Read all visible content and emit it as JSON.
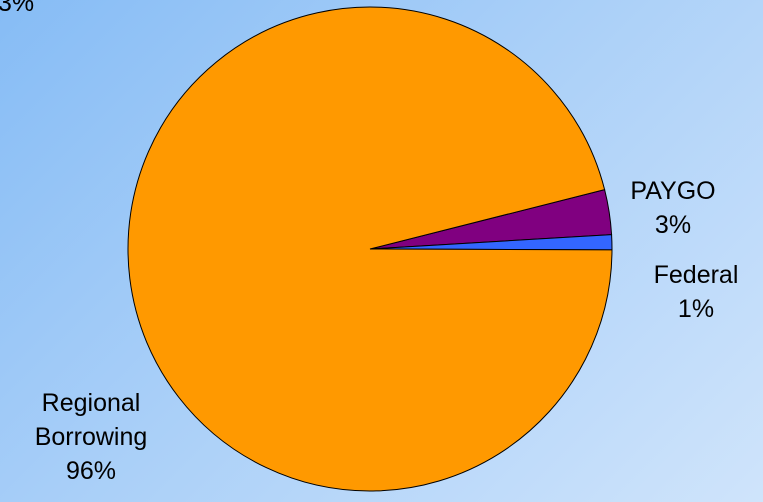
{
  "chart_data": {
    "type": "pie",
    "title": "",
    "slices": [
      {
        "label": "PAYGO",
        "value": 3,
        "value_label": "3%",
        "color": "#800080"
      },
      {
        "label": "Federal",
        "value": 1,
        "value_label": "1%",
        "color": "#3366ff"
      },
      {
        "label": "Regional Borrowing",
        "label_lines": [
          "Regional",
          "Borrowing"
        ],
        "value": 96,
        "value_label": "96%",
        "color": "#ff9900"
      }
    ],
    "cut_off_label": "3%"
  }
}
